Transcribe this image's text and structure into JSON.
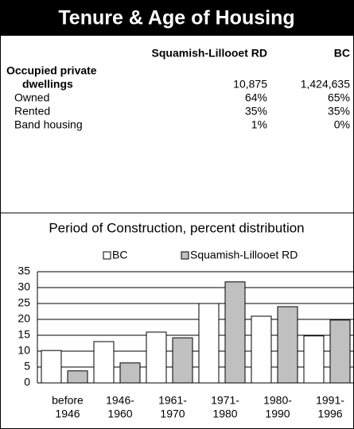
{
  "header": {
    "title": "Tenure & Age of Housing"
  },
  "table": {
    "columns": [
      "Squamish-Lillooet RD",
      "BC"
    ],
    "rows": [
      {
        "label": [
          "Occupied private",
          "dwellings"
        ],
        "values": [
          "10,875",
          "1,424,635"
        ],
        "bold": true
      },
      {
        "label": [
          "Owned"
        ],
        "values": [
          "64%",
          "65%"
        ]
      },
      {
        "label": [
          "Rented"
        ],
        "values": [
          "35%",
          "35%"
        ]
      },
      {
        "label": [
          "Band housing"
        ],
        "values": [
          "1%",
          "0%"
        ]
      }
    ]
  },
  "chart_data": {
    "type": "bar",
    "title": "Period of Construction, percent distribution",
    "categories": [
      [
        "before",
        "1946"
      ],
      [
        "1946-",
        "1960"
      ],
      [
        "1961-",
        "1970"
      ],
      [
        "1971-",
        "1980"
      ],
      [
        "1980-",
        "1990"
      ],
      [
        "1991-",
        "1996"
      ]
    ],
    "series": [
      {
        "name": "BC",
        "color": "#ffffff",
        "values": [
          10.2,
          13,
          16,
          25,
          21,
          14.8
        ]
      },
      {
        "name": "Squamish-Lillooet RD",
        "color": "#c0c0c0",
        "values": [
          3.8,
          6.3,
          14.2,
          31.8,
          24,
          19.8
        ]
      }
    ],
    "ylim": [
      0,
      35
    ],
    "yticks": [
      0,
      5,
      10,
      15,
      20,
      25,
      30,
      35
    ],
    "grid": true,
    "legend": "top"
  }
}
